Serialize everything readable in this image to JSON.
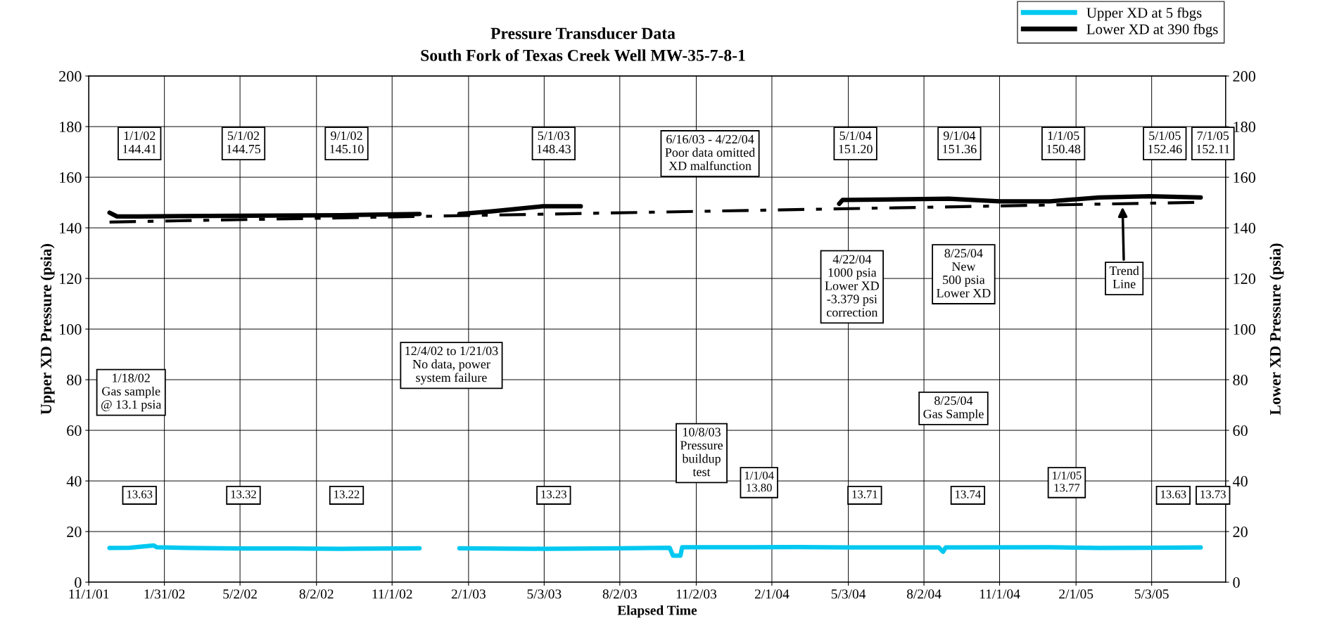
{
  "chart_data": {
    "type": "line",
    "title": "Pressure Transducer Data\nSouth Fork of Texas Creek Well MW-35-7-8-1",
    "xlabel": "Elapsed Time",
    "ylabel": "Upper XD Pressure (psia)",
    "y2label": "Lower XD Pressure (psia)",
    "xlim": [
      "2001-11-01",
      "2005-07-31"
    ],
    "xticks": [
      {
        "value": "2001-11-01",
        "label": "11/1/01"
      },
      {
        "value": "2002-01-31",
        "label": "1/31/02"
      },
      {
        "value": "2002-05-02",
        "label": "5/2/02"
      },
      {
        "value": "2002-08-02",
        "label": "8/2/02"
      },
      {
        "value": "2002-11-01",
        "label": "11/1/02"
      },
      {
        "value": "2003-02-01",
        "label": "2/1/03"
      },
      {
        "value": "2003-05-03",
        "label": "5/3/03"
      },
      {
        "value": "2003-08-02",
        "label": "8/2/03"
      },
      {
        "value": "2003-11-02",
        "label": "11/2/03"
      },
      {
        "value": "2004-02-01",
        "label": "2/1/04"
      },
      {
        "value": "2004-05-03",
        "label": "5/3/04"
      },
      {
        "value": "2004-08-02",
        "label": "8/2/04"
      },
      {
        "value": "2004-11-01",
        "label": "11/1/04"
      },
      {
        "value": "2005-02-01",
        "label": "2/1/05"
      },
      {
        "value": "2005-05-03",
        "label": "5/3/05"
      }
    ],
    "ylim": [
      0,
      200
    ],
    "yticks": [
      0,
      20,
      40,
      60,
      80,
      100,
      120,
      140,
      160,
      180,
      200
    ],
    "y2lim": [
      0,
      200
    ],
    "y2ticks": [
      0,
      20,
      40,
      60,
      80,
      100,
      120,
      140,
      160,
      180,
      200
    ],
    "grid": true,
    "legend": "top right",
    "marker": "none",
    "series": [
      {
        "name": "Upper XD at 5 fbgs",
        "color": "#00c8f0",
        "line_style": "solid",
        "x": [
          "2001-11-26",
          "2001-12-20",
          "2002-01-18",
          "2002-01-22",
          "2002-03-01",
          "2002-05-01",
          "2002-07-01",
          "2002-09-01",
          "2002-11-01",
          "2002-12-04",
          "2002-12-20",
          "2003-01-21",
          "2003-05-01",
          "2003-08-01",
          "2003-10-01",
          "2003-10-05",
          "2003-10-14",
          "2003-10-16",
          "2004-01-01",
          "2004-03-01",
          "2004-05-01",
          "2004-08-20",
          "2004-08-25",
          "2004-08-28",
          "2005-01-01",
          "2005-03-01",
          "2005-05-01",
          "2005-07-01"
        ],
        "values": [
          13.5,
          13.6,
          14.5,
          13.8,
          13.5,
          13.3,
          13.3,
          13.2,
          13.3,
          13.4,
          null,
          13.4,
          13.2,
          13.4,
          13.6,
          10.5,
          10.5,
          13.8,
          13.8,
          13.9,
          13.7,
          13.7,
          12.0,
          13.7,
          13.8,
          13.5,
          13.6,
          13.7
        ]
      },
      {
        "name": "Lower XD at 390 fbgs",
        "color": "#000000",
        "line_style": "solid",
        "x": [
          "2001-11-26",
          "2001-12-05",
          "2002-01-01",
          "2002-05-01",
          "2002-09-01",
          "2002-12-04",
          "2002-12-20",
          "2003-01-21",
          "2003-03-01",
          "2003-05-01",
          "2003-06-16",
          "2003-07-01",
          "2004-04-22",
          "2004-04-26",
          "2004-05-01",
          "2004-09-01",
          "2004-11-01",
          "2005-01-01",
          "2005-03-01",
          "2005-05-01",
          "2005-07-01"
        ],
        "values": [
          146.0,
          144.5,
          144.5,
          144.8,
          145.0,
          145.5,
          null,
          145.5,
          146.5,
          148.5,
          148.5,
          null,
          149.5,
          151.0,
          151.0,
          151.5,
          150.5,
          150.5,
          152.0,
          152.5,
          152.0
        ]
      },
      {
        "color": "#000000",
        "line_style": "dashed",
        "x": [
          "2001-11-26",
          "2005-07-01"
        ],
        "values": [
          142.3,
          150.1
        ]
      }
    ],
    "annotations": [
      "1/1/02\n144.41",
      "5/1/02\n144.75",
      "9/1/02\n145.10",
      "5/1/03\n148.43",
      "6/16/03 - 4/22/04\nPoor data omitted\nXD malfunction",
      "5/1/04\n151.20",
      "9/1/04\n151.36",
      "1/1/05\n150.48",
      "5/1/05\n152.46",
      "7/1/05\n152.11",
      "4/22/04\n1000 psia\nLower XD\n-3.379 psi\ncorrection",
      "8/25/04\nNew\n500 psia\nLower XD",
      "Trend\nLine",
      "12/4/02 to 1/21/03\nNo data, power\nsystem failure",
      "1/18/02\nGas sample\n@ 13.1 psia",
      "8/25/04\nGas Sample",
      "10/8/03\nPressure\nbuildup\ntest",
      "13.63",
      "13.32",
      "13.22",
      "13.23",
      "1/1/04\n13.80",
      "13.71",
      "13.74",
      "1/1/05\n13.77",
      "13.63",
      "13.73"
    ]
  }
}
